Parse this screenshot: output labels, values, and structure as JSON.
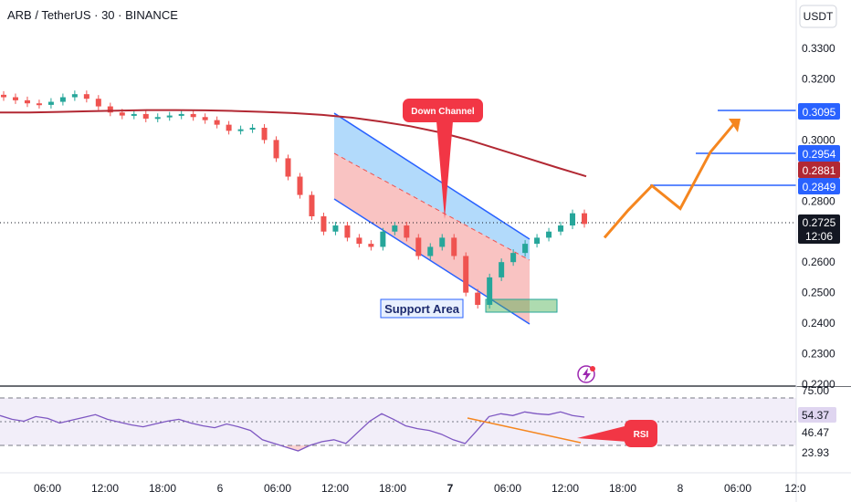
{
  "header": {
    "title": "ARB / TetherUS · 30 · BINANCE",
    "currency_button": "USDT"
  },
  "price_axis": {
    "ticks": [
      "0.3300",
      "0.3200",
      "0.3100",
      "0.3000",
      "0.2800",
      "0.2600",
      "0.2500",
      "0.2400",
      "0.2300",
      "0.2200"
    ],
    "badges": {
      "target_3": "0.3095",
      "target_2": "0.2954",
      "moving_average": "0.2881",
      "target_1": "0.2849",
      "last_price": "0.2725",
      "countdown": "12:06"
    }
  },
  "rsi_axis": {
    "ticks": [
      "75.00",
      "46.47",
      "23.93"
    ],
    "current": "54.37"
  },
  "time_axis": {
    "labels": [
      {
        "text": "06:00",
        "bold": false
      },
      {
        "text": "12:00",
        "bold": false
      },
      {
        "text": "18:00",
        "bold": false
      },
      {
        "text": "6",
        "bold": false
      },
      {
        "text": "06:00",
        "bold": false
      },
      {
        "text": "12:00",
        "bold": false
      },
      {
        "text": "18:00",
        "bold": false
      },
      {
        "text": "7",
        "bold": true
      },
      {
        "text": "06:00",
        "bold": false
      },
      {
        "text": "12:00",
        "bold": false
      },
      {
        "text": "18:00",
        "bold": false
      },
      {
        "text": "8",
        "bold": false
      },
      {
        "text": "06:00",
        "bold": false
      },
      {
        "text": "12:0",
        "bold": false
      }
    ]
  },
  "annotations": {
    "down_channel": "Down Channel",
    "support_area": "Support Area",
    "rsi_note": "RSI"
  },
  "colors": {
    "up": "#26a69a",
    "down": "#ef5350",
    "moving_average": "#b22833",
    "target_line": "#2962ff",
    "projection": "#f5861f",
    "rsi_line": "#7e57c2",
    "channel_fill": "#2196f3",
    "support_fill": "#4caf50"
  },
  "chart_data": {
    "type": "candlestick",
    "symbol": "ARB / TetherUS",
    "interval": "30",
    "exchange": "BINANCE",
    "ylim": [
      0.22,
      0.335
    ],
    "last_price": 0.2725,
    "moving_average_last": 0.2881,
    "targets": [
      0.2849,
      0.2954,
      0.3095
    ],
    "support_area": [
      0.244,
      0.247
    ],
    "close_path": [
      0.314,
      0.313,
      0.312,
      0.3115,
      0.3125,
      0.314,
      0.315,
      0.3135,
      0.311,
      0.309,
      0.308,
      0.3085,
      0.307,
      0.3075,
      0.308,
      0.3085,
      0.3075,
      0.3065,
      0.305,
      0.303,
      0.3035,
      0.304,
      0.3,
      0.294,
      0.288,
      0.282,
      0.275,
      0.27,
      0.272,
      0.268,
      0.266,
      0.265,
      0.27,
      0.272,
      0.268,
      0.262,
      0.265,
      0.268,
      0.262,
      0.25,
      0.246,
      0.255,
      0.26,
      0.263,
      0.266,
      0.268,
      0.27,
      0.272,
      0.276,
      0.2725
    ],
    "moving_average_path": [
      0.309,
      0.309,
      0.3092,
      0.3094,
      0.3096,
      0.3098,
      0.3098,
      0.3097,
      0.3095,
      0.3092,
      0.3088,
      0.3082,
      0.3073,
      0.306,
      0.3045,
      0.3025,
      0.3,
      0.297,
      0.294,
      0.291,
      0.2881
    ],
    "projection_path": [
      0.268,
      0.277,
      0.285,
      0.2775,
      0.296,
      0.306
    ],
    "rsi": {
      "levels": [
        75.0,
        46.47,
        23.93
      ],
      "current": 54.37,
      "values": [
        56,
        52,
        50,
        55,
        53,
        48,
        51,
        54,
        57,
        52,
        49,
        46,
        44,
        47,
        50,
        52,
        48,
        45,
        43,
        47,
        44,
        40,
        30,
        26,
        22,
        18,
        24,
        28,
        30,
        26,
        38,
        50,
        58,
        52,
        45,
        42,
        40,
        36,
        30,
        26,
        40,
        55,
        58,
        56,
        60,
        58,
        57,
        60,
        56,
        54.37
      ]
    }
  }
}
